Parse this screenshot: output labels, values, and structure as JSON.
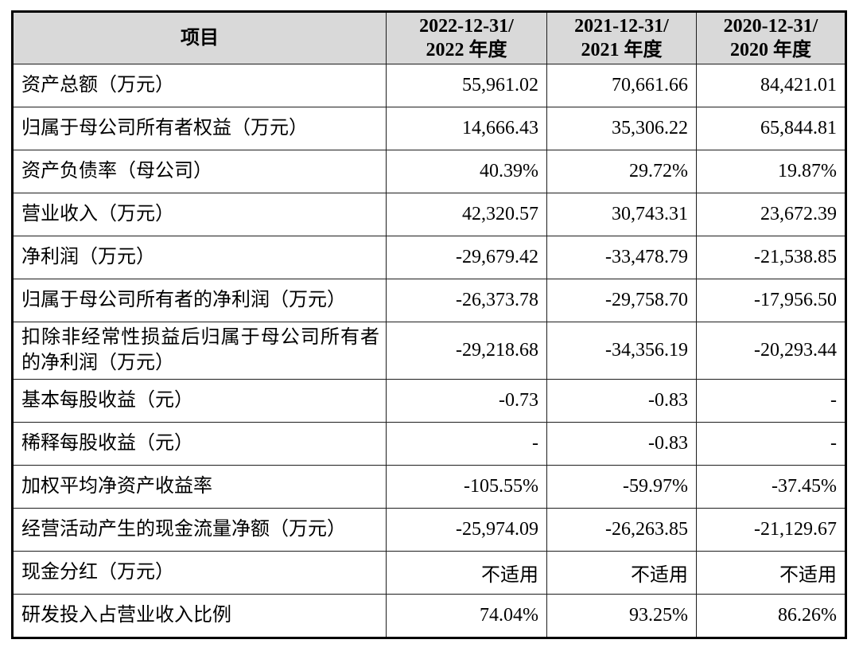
{
  "table": {
    "header": {
      "item_label": "项目",
      "periods": [
        {
          "line1": "2022-12-31/",
          "line2": "2022 年度"
        },
        {
          "line1": "2021-12-31/",
          "line2": "2021 年度"
        },
        {
          "line1": "2020-12-31/",
          "line2": "2020 年度"
        }
      ]
    },
    "rows": [
      {
        "label": "资产总额（万元）",
        "values": [
          "55,961.02",
          "70,661.66",
          "84,421.01"
        ],
        "emphasis": true
      },
      {
        "label": "归属于母公司所有者权益（万元）",
        "values": [
          "14,666.43",
          "35,306.22",
          "65,844.81"
        ],
        "emphasis": true
      },
      {
        "label": "资产负债率（母公司）",
        "values": [
          "40.39%",
          "29.72%",
          "19.87%"
        ],
        "emphasis": true
      },
      {
        "label": "营业收入（万元）",
        "values": [
          "42,320.57",
          "30,743.31",
          "23,672.39"
        ],
        "emphasis": true
      },
      {
        "label": "净利润（万元）",
        "values": [
          "-29,679.42",
          "-33,478.79",
          "-21,538.85"
        ],
        "emphasis": true
      },
      {
        "label": "归属于母公司所有者的净利润（万元）",
        "values": [
          "-26,373.78",
          "-29,758.70",
          "-17,956.50"
        ]
      },
      {
        "label": "扣除非经常性损益后归属于母公司所有者的净利润（万元）",
        "values": [
          "-29,218.68",
          "-34,356.19",
          "-20,293.44"
        ],
        "tall": true
      },
      {
        "label": "基本每股收益（元）",
        "values": [
          "-0.73",
          "-0.83",
          "-"
        ]
      },
      {
        "label": "稀释每股收益（元）",
        "values": [
          "-",
          "-0.83",
          "-"
        ]
      },
      {
        "label": "加权平均净资产收益率",
        "values": [
          "-105.55%",
          "-59.97%",
          "-37.45%"
        ]
      },
      {
        "label": "经营活动产生的现金流量净额（万元）",
        "values": [
          "-25,974.09",
          "-26,263.85",
          "-21,129.67"
        ]
      },
      {
        "label": "现金分红（万元）",
        "values": [
          "不适用",
          "不适用",
          "不适用"
        ]
      },
      {
        "label": "研发投入占营业收入比例",
        "values": [
          "74.04%",
          "93.25%",
          "86.26%"
        ]
      }
    ],
    "colors": {
      "header_bg": "#d9d9d9",
      "border": "#000000",
      "text": "#000000"
    }
  }
}
